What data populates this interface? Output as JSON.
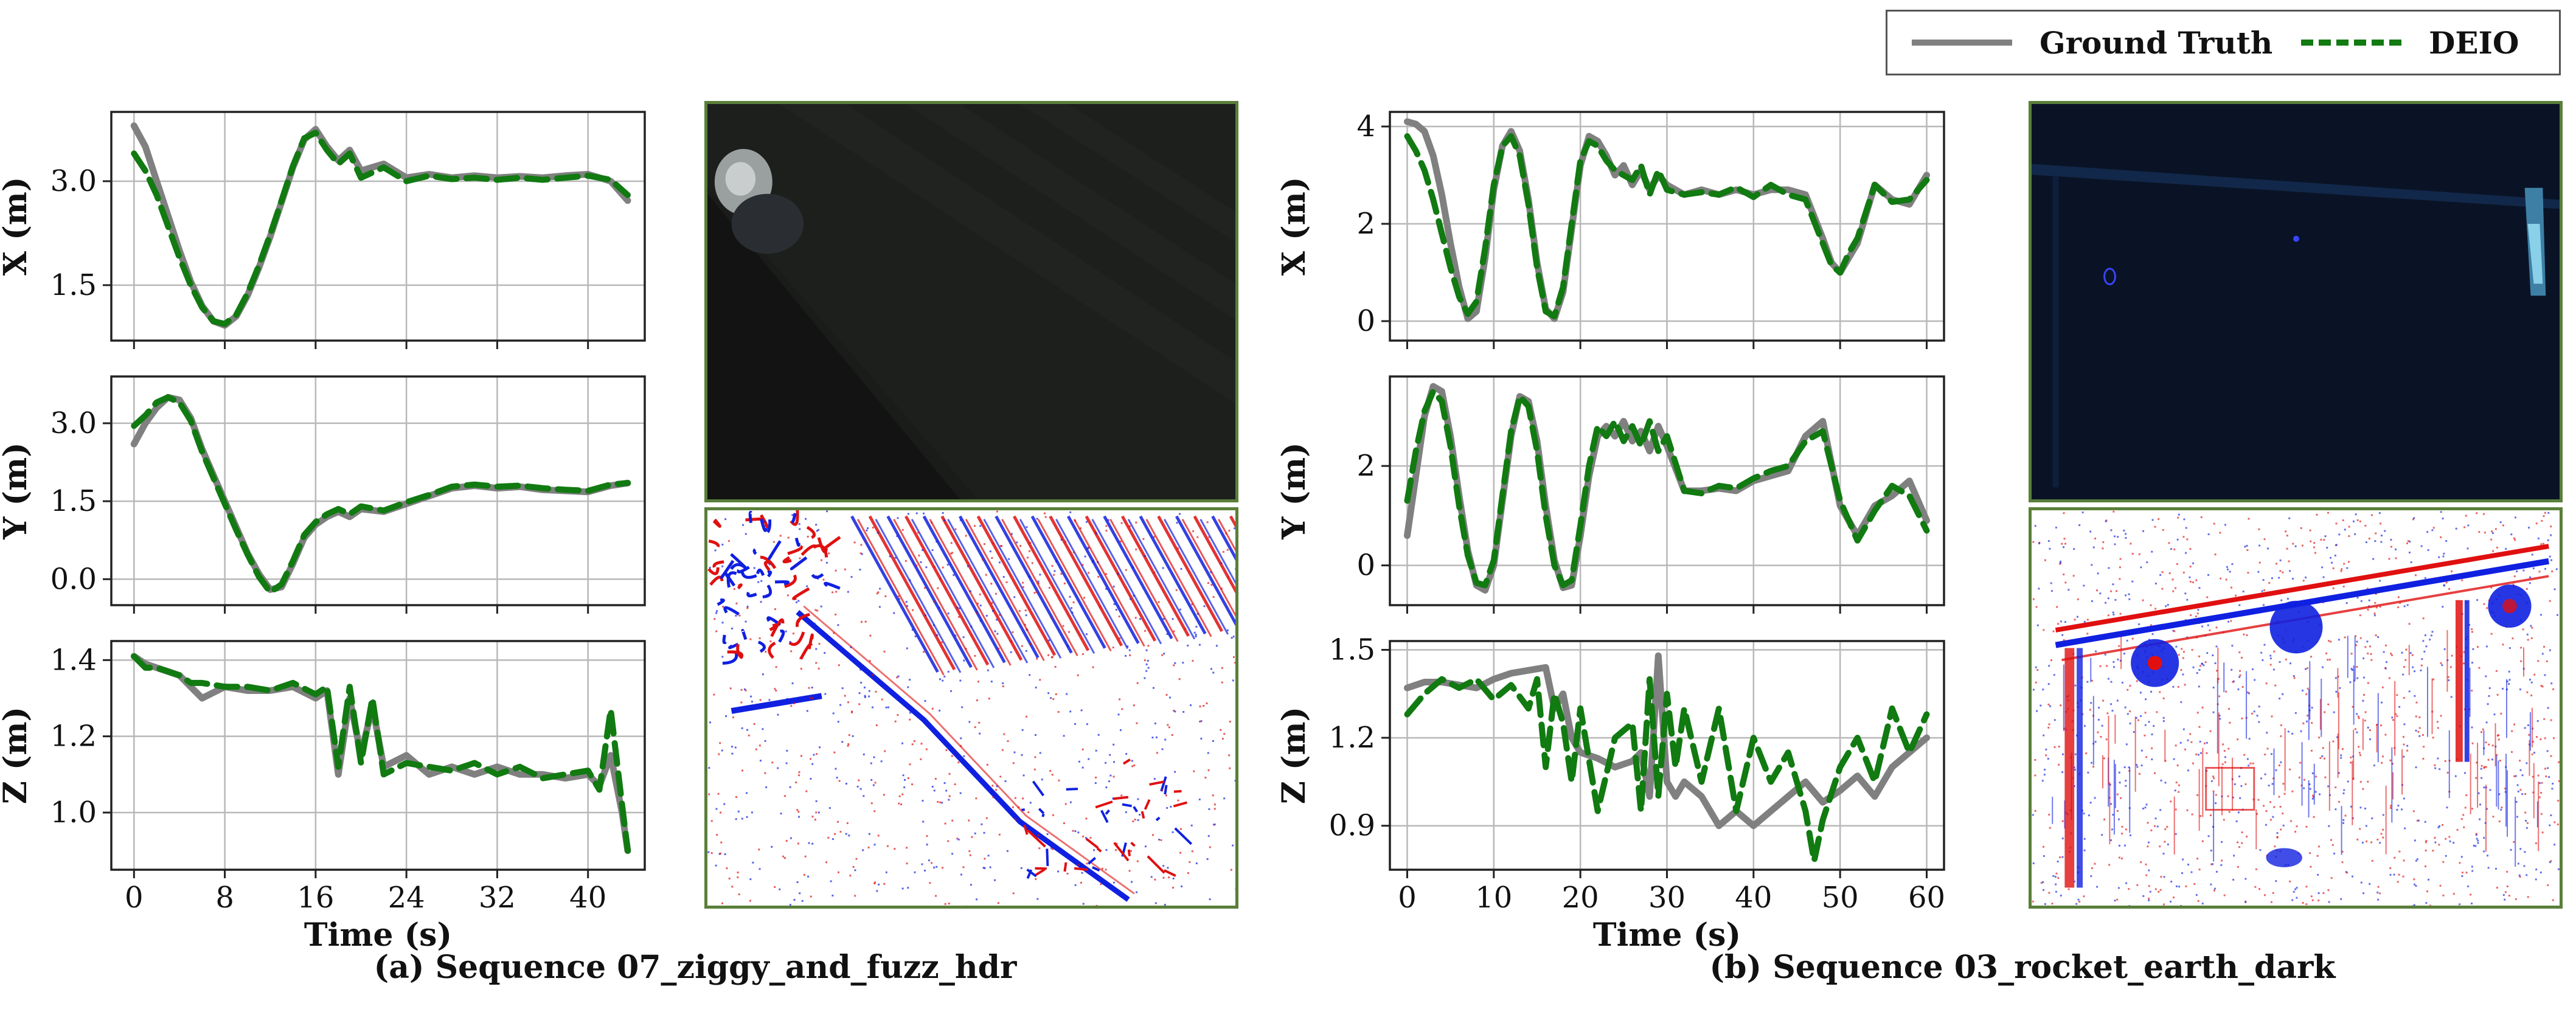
{
  "legend": {
    "gt_label": "Ground Truth",
    "deio_label": "DEIO",
    "gt_color": "#808080",
    "deio_color": "#117a11"
  },
  "captions": {
    "a": "(a) Sequence 07_ziggy_and_fuzz_hdr",
    "b": "(b) Sequence 03_rocket_earth_dark"
  },
  "event_colors": {
    "positive": "#e01010",
    "negative": "#1020e0"
  },
  "chart_data": [
    {
      "type": "line",
      "group": "a",
      "xlabel": "",
      "ylabel": "X (m)",
      "xlim": [
        -2,
        45
      ],
      "ylim": [
        0.7,
        4.0
      ],
      "xticks": [
        0,
        8,
        16,
        24,
        32,
        40
      ],
      "yticks": [
        1.5,
        3.0
      ],
      "show_xticklabels": false,
      "grid": true,
      "series": [
        {
          "name": "Ground Truth",
          "x": [
            0,
            1,
            2,
            3,
            4,
            5,
            6,
            7,
            8,
            9,
            10,
            11,
            12,
            13,
            14,
            15,
            16,
            17,
            18,
            19,
            20,
            22,
            24,
            26,
            28,
            30,
            32,
            34,
            36,
            38,
            40,
            42,
            43.5
          ],
          "values": [
            3.8,
            3.5,
            3.0,
            2.5,
            2.0,
            1.55,
            1.2,
            0.98,
            0.92,
            1.05,
            1.35,
            1.75,
            2.2,
            2.7,
            3.2,
            3.6,
            3.75,
            3.5,
            3.3,
            3.45,
            3.15,
            3.25,
            3.05,
            3.1,
            3.05,
            3.08,
            3.05,
            3.07,
            3.05,
            3.08,
            3.1,
            3.0,
            2.72
          ]
        },
        {
          "name": "DEIO",
          "x": [
            0,
            1,
            2,
            3,
            4,
            5,
            6,
            7,
            8,
            9,
            10,
            11,
            12,
            13,
            14,
            15,
            16,
            17,
            18,
            19,
            20,
            22,
            24,
            26,
            28,
            30,
            32,
            34,
            36,
            38,
            40,
            42,
            43.5
          ],
          "values": [
            3.4,
            3.15,
            2.8,
            2.35,
            1.9,
            1.5,
            1.18,
            0.98,
            0.94,
            1.07,
            1.38,
            1.78,
            2.23,
            2.72,
            3.22,
            3.62,
            3.7,
            3.45,
            3.25,
            3.4,
            3.05,
            3.2,
            3.0,
            3.08,
            3.03,
            3.05,
            3.02,
            3.05,
            3.02,
            3.05,
            3.08,
            3.02,
            2.8
          ]
        }
      ]
    },
    {
      "type": "line",
      "group": "a",
      "xlabel": "",
      "ylabel": "Y (m)",
      "xlim": [
        -2,
        45
      ],
      "ylim": [
        -0.5,
        3.9
      ],
      "xticks": [
        0,
        8,
        16,
        24,
        32,
        40
      ],
      "yticks": [
        0.0,
        1.5,
        3.0
      ],
      "show_xticklabels": false,
      "grid": true,
      "series": [
        {
          "name": "Ground Truth",
          "x": [
            0,
            1,
            2,
            3,
            4,
            5,
            6,
            7,
            8,
            9,
            10,
            11,
            12,
            13,
            14,
            15,
            16,
            17,
            18,
            19,
            20,
            22,
            24,
            26,
            28,
            30,
            32,
            34,
            36,
            38,
            40,
            42,
            43.5
          ],
          "values": [
            2.6,
            3.0,
            3.3,
            3.5,
            3.45,
            3.1,
            2.5,
            2.0,
            1.5,
            1.0,
            0.5,
            0.1,
            -0.2,
            -0.15,
            0.3,
            0.8,
            1.05,
            1.2,
            1.3,
            1.2,
            1.35,
            1.3,
            1.45,
            1.6,
            1.75,
            1.8,
            1.75,
            1.78,
            1.72,
            1.7,
            1.68,
            1.8,
            1.85
          ]
        },
        {
          "name": "DEIO",
          "x": [
            0,
            1,
            2,
            3,
            4,
            5,
            6,
            7,
            8,
            9,
            10,
            11,
            12,
            13,
            14,
            15,
            16,
            17,
            18,
            19,
            20,
            22,
            24,
            26,
            28,
            30,
            32,
            34,
            36,
            38,
            40,
            42,
            43.5
          ],
          "values": [
            2.95,
            3.15,
            3.4,
            3.5,
            3.4,
            3.05,
            2.45,
            1.95,
            1.45,
            0.95,
            0.48,
            0.05,
            -0.25,
            -0.1,
            0.35,
            0.85,
            1.1,
            1.25,
            1.35,
            1.25,
            1.4,
            1.32,
            1.48,
            1.62,
            1.78,
            1.82,
            1.78,
            1.8,
            1.75,
            1.72,
            1.7,
            1.82,
            1.85
          ]
        }
      ]
    },
    {
      "type": "line",
      "group": "a",
      "xlabel": "Time (s)",
      "ylabel": "Z (m)",
      "xlim": [
        -2,
        45
      ],
      "ylim": [
        0.85,
        1.45
      ],
      "xticks": [
        0,
        8,
        16,
        24,
        32,
        40
      ],
      "yticks": [
        1.0,
        1.2,
        1.4
      ],
      "show_xticklabels": true,
      "grid": true,
      "series": [
        {
          "name": "Ground Truth",
          "x": [
            0,
            1,
            2,
            3,
            4,
            5,
            6,
            8,
            10,
            12,
            14,
            16,
            17,
            18,
            19,
            20,
            21,
            22,
            24,
            26,
            28,
            30,
            32,
            34,
            36,
            38,
            40,
            41,
            42,
            43,
            43.5
          ],
          "values": [
            1.41,
            1.39,
            1.38,
            1.37,
            1.36,
            1.33,
            1.3,
            1.33,
            1.32,
            1.32,
            1.33,
            1.3,
            1.32,
            1.1,
            1.3,
            1.15,
            1.28,
            1.12,
            1.15,
            1.1,
            1.12,
            1.1,
            1.12,
            1.1,
            1.1,
            1.09,
            1.1,
            1.07,
            1.15,
            1.0,
            0.9
          ]
        },
        {
          "name": "DEIO",
          "x": [
            0,
            1,
            2,
            3,
            4,
            5,
            6,
            8,
            10,
            12,
            14,
            16,
            17,
            18,
            19,
            20,
            21,
            22,
            24,
            26,
            28,
            30,
            32,
            34,
            36,
            38,
            40,
            41,
            42,
            43,
            43.5
          ],
          "values": [
            1.41,
            1.38,
            1.38,
            1.37,
            1.36,
            1.34,
            1.34,
            1.33,
            1.33,
            1.32,
            1.34,
            1.31,
            1.33,
            1.12,
            1.33,
            1.13,
            1.3,
            1.1,
            1.13,
            1.12,
            1.11,
            1.13,
            1.1,
            1.12,
            1.09,
            1.1,
            1.11,
            1.06,
            1.27,
            1.02,
            0.9
          ]
        }
      ]
    },
    {
      "type": "line",
      "group": "b",
      "xlabel": "",
      "ylabel": "X (m)",
      "xlim": [
        -2,
        62
      ],
      "ylim": [
        -0.4,
        4.3
      ],
      "xticks": [
        0,
        10,
        20,
        30,
        40,
        50,
        60
      ],
      "yticks": [
        0,
        2,
        4
      ],
      "show_xticklabels": false,
      "grid": true,
      "series": [
        {
          "name": "Ground Truth",
          "x": [
            0,
            1,
            2,
            3,
            4,
            5,
            6,
            7,
            8,
            9,
            10,
            11,
            12,
            13,
            14,
            15,
            16,
            17,
            18,
            19,
            20,
            21,
            22,
            23,
            24,
            25,
            26,
            27,
            28,
            29,
            30,
            32,
            34,
            36,
            38,
            40,
            42,
            44,
            46,
            48,
            49,
            50,
            51,
            52,
            54,
            56,
            58,
            60
          ],
          "values": [
            4.1,
            4.05,
            3.9,
            3.4,
            2.6,
            1.6,
            0.7,
            0.05,
            0.2,
            1.3,
            2.7,
            3.6,
            3.9,
            3.5,
            2.5,
            1.2,
            0.25,
            0.05,
            0.6,
            1.9,
            3.2,
            3.8,
            3.7,
            3.4,
            3.0,
            3.2,
            2.8,
            3.1,
            2.7,
            3.0,
            2.8,
            2.6,
            2.7,
            2.6,
            2.7,
            2.6,
            2.7,
            2.7,
            2.6,
            1.7,
            1.2,
            1.0,
            1.3,
            1.6,
            2.8,
            2.5,
            2.4,
            3.0
          ]
        },
        {
          "name": "DEIO",
          "x": [
            0,
            1,
            2,
            3,
            4,
            5,
            6,
            7,
            8,
            9,
            10,
            11,
            12,
            13,
            14,
            15,
            16,
            17,
            18,
            19,
            20,
            21,
            22,
            23,
            24,
            25,
            26,
            27,
            28,
            29,
            30,
            32,
            34,
            36,
            38,
            40,
            42,
            44,
            46,
            48,
            49,
            50,
            51,
            52,
            54,
            56,
            58,
            60
          ],
          "values": [
            3.8,
            3.5,
            3.1,
            2.5,
            1.8,
            1.1,
            0.5,
            0.15,
            0.4,
            1.5,
            2.8,
            3.6,
            3.8,
            3.4,
            2.4,
            1.1,
            0.2,
            0.1,
            0.7,
            2.0,
            3.3,
            3.7,
            3.6,
            3.3,
            3.1,
            3.0,
            2.9,
            3.2,
            2.6,
            3.1,
            2.7,
            2.6,
            2.65,
            2.6,
            2.75,
            2.55,
            2.8,
            2.6,
            2.5,
            1.6,
            1.15,
            1.0,
            1.4,
            1.7,
            2.8,
            2.45,
            2.5,
            2.9
          ]
        }
      ]
    },
    {
      "type": "line",
      "group": "b",
      "xlabel": "",
      "ylabel": "Y (m)",
      "xlim": [
        -2,
        62
      ],
      "ylim": [
        -0.8,
        3.8
      ],
      "xticks": [
        0,
        10,
        20,
        30,
        40,
        50,
        60
      ],
      "yticks": [
        0,
        2
      ],
      "show_xticklabels": false,
      "grid": true,
      "series": [
        {
          "name": "Ground Truth",
          "x": [
            0,
            1,
            2,
            3,
            4,
            5,
            6,
            7,
            8,
            9,
            10,
            11,
            12,
            13,
            14,
            15,
            16,
            17,
            18,
            19,
            20,
            21,
            22,
            23,
            24,
            25,
            26,
            27,
            28,
            29,
            30,
            32,
            34,
            36,
            38,
            40,
            42,
            44,
            46,
            48,
            50,
            52,
            54,
            56,
            58,
            60
          ],
          "values": [
            0.6,
            1.8,
            3.0,
            3.6,
            3.5,
            2.6,
            1.4,
            0.3,
            -0.4,
            -0.5,
            0.0,
            1.3,
            2.6,
            3.4,
            3.3,
            2.5,
            1.2,
            0.1,
            -0.45,
            -0.4,
            0.6,
            1.8,
            2.6,
            2.8,
            2.6,
            2.9,
            2.5,
            2.7,
            2.3,
            2.8,
            2.4,
            1.5,
            1.5,
            1.55,
            1.5,
            1.7,
            1.8,
            1.9,
            2.6,
            2.9,
            1.2,
            0.6,
            1.2,
            1.4,
            1.7,
            0.9
          ]
        },
        {
          "name": "DEIO",
          "x": [
            0,
            1,
            2,
            3,
            4,
            5,
            6,
            7,
            8,
            9,
            10,
            11,
            12,
            13,
            14,
            15,
            16,
            17,
            18,
            19,
            20,
            21,
            22,
            23,
            24,
            25,
            26,
            27,
            28,
            29,
            30,
            32,
            34,
            36,
            38,
            40,
            42,
            44,
            46,
            48,
            50,
            52,
            54,
            56,
            58,
            60
          ],
          "values": [
            1.3,
            2.3,
            3.1,
            3.5,
            3.3,
            2.4,
            1.2,
            0.2,
            -0.35,
            -0.4,
            0.1,
            1.4,
            2.7,
            3.4,
            3.2,
            2.3,
            1.0,
            0.0,
            -0.4,
            -0.3,
            0.8,
            2.0,
            2.8,
            2.6,
            2.9,
            2.5,
            2.8,
            2.4,
            2.9,
            2.3,
            2.6,
            1.5,
            1.45,
            1.6,
            1.55,
            1.75,
            1.9,
            2.0,
            2.5,
            2.7,
            1.3,
            0.5,
            1.1,
            1.6,
            1.4,
            0.7
          ]
        }
      ]
    },
    {
      "type": "line",
      "group": "b",
      "xlabel": "Time (s)",
      "ylabel": "Z (m)",
      "xlim": [
        -2,
        62
      ],
      "ylim": [
        0.75,
        1.53
      ],
      "xticks": [
        0,
        10,
        20,
        30,
        40,
        50,
        60
      ],
      "yticks": [
        0.9,
        1.2,
        1.5
      ],
      "show_xticklabels": true,
      "grid": true,
      "series": [
        {
          "name": "Ground Truth",
          "x": [
            0,
            2,
            4,
            6,
            8,
            10,
            12,
            14,
            16,
            17,
            18,
            19,
            20,
            22,
            24,
            26,
            27,
            28,
            29,
            30,
            31,
            32,
            34,
            36,
            38,
            40,
            42,
            44,
            46,
            48,
            50,
            52,
            54,
            56,
            58,
            60
          ],
          "values": [
            1.37,
            1.39,
            1.39,
            1.38,
            1.37,
            1.4,
            1.42,
            1.43,
            1.44,
            1.3,
            1.35,
            1.2,
            1.15,
            1.13,
            1.1,
            1.12,
            1.15,
            1.0,
            1.48,
            1.05,
            1.0,
            1.05,
            1.0,
            0.9,
            0.95,
            0.9,
            0.95,
            1.0,
            1.05,
            0.98,
            1.02,
            1.07,
            1.0,
            1.1,
            1.15,
            1.2
          ]
        },
        {
          "name": "DEIO",
          "x": [
            0,
            2,
            4,
            6,
            8,
            10,
            12,
            14,
            15,
            16,
            17,
            18,
            19,
            20,
            22,
            24,
            26,
            27,
            28,
            29,
            30,
            31,
            32,
            34,
            36,
            38,
            40,
            42,
            44,
            46,
            47,
            48,
            50,
            52,
            54,
            56,
            58,
            60
          ],
          "values": [
            1.28,
            1.35,
            1.4,
            1.37,
            1.4,
            1.33,
            1.38,
            1.3,
            1.4,
            1.1,
            1.35,
            1.25,
            1.05,
            1.3,
            0.95,
            1.2,
            1.25,
            0.95,
            1.4,
            1.0,
            1.35,
            1.1,
            1.3,
            1.05,
            1.3,
            0.95,
            1.2,
            1.05,
            1.15,
            0.95,
            0.78,
            0.92,
            1.1,
            1.2,
            1.05,
            1.3,
            1.15,
            1.28
          ]
        }
      ]
    }
  ]
}
